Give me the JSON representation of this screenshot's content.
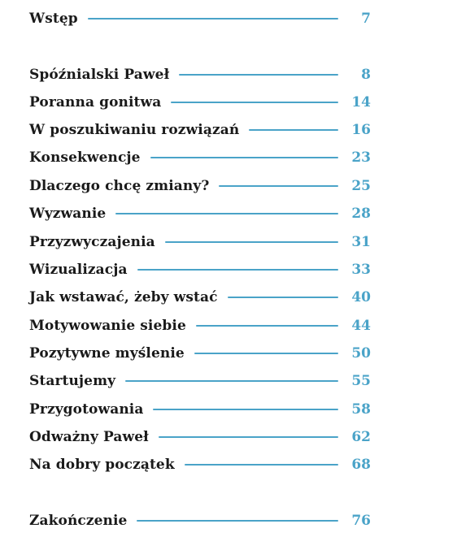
{
  "colors": {
    "text": "#1a1a1a",
    "accent": "#4aa3c8"
  },
  "toc": {
    "entries": [
      {
        "title": "Wstęp",
        "page": "7"
      },
      {
        "title": "Spóźnialski Paweł",
        "page": "8"
      },
      {
        "title": "Poranna gonitwa",
        "page": "14"
      },
      {
        "title": "W poszukiwaniu rozwiązań",
        "page": "16"
      },
      {
        "title": "Konsekwencje",
        "page": "23"
      },
      {
        "title": "Dlaczego chcę zmiany?",
        "page": "25"
      },
      {
        "title": "Wyzwanie",
        "page": "28"
      },
      {
        "title": "Przyzwyczajenia",
        "page": "31"
      },
      {
        "title": "Wizualizacja",
        "page": "33"
      },
      {
        "title": "Jak wstawać, żeby wstać",
        "page": "40"
      },
      {
        "title": "Motywowanie siebie",
        "page": "44"
      },
      {
        "title": "Pozytywne myślenie",
        "page": "50"
      },
      {
        "title": "Startujemy",
        "page": "55"
      },
      {
        "title": "Przygotowania",
        "page": "58"
      },
      {
        "title": "Odważny Paweł",
        "page": "62"
      },
      {
        "title": "Na dobry początek",
        "page": "68"
      },
      {
        "title": "Zakończenie",
        "page": "76"
      }
    ]
  }
}
